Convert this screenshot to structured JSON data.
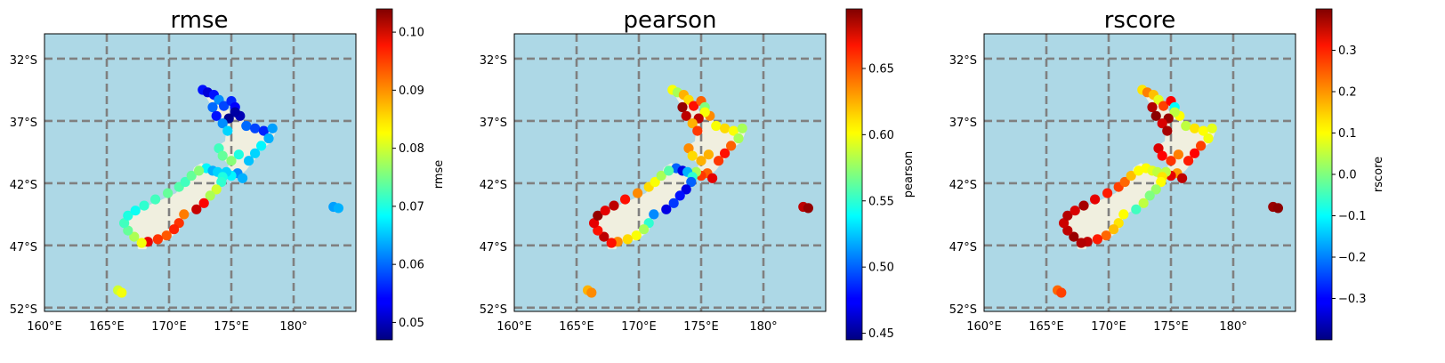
{
  "chart_data": [
    {
      "type": "map-scatter",
      "title": "rmse",
      "colorbar_label": "rmse",
      "cbar_range": [
        0.047,
        0.104
      ],
      "cbar_ticks": [
        0.05,
        0.06,
        0.07,
        0.08,
        0.09,
        0.1
      ],
      "cbar_tick_labels": [
        "0.05",
        "0.06",
        "0.07",
        "0.08",
        "0.09",
        "0.10"
      ]
    },
    {
      "type": "map-scatter",
      "title": "pearson",
      "colorbar_label": "pearson",
      "cbar_range": [
        0.445,
        0.695
      ],
      "cbar_ticks": [
        0.45,
        0.5,
        0.55,
        0.6,
        0.65
      ],
      "cbar_tick_labels": [
        "0.45",
        "0.50",
        "0.55",
        "0.60",
        "0.65"
      ]
    },
    {
      "type": "map-scatter",
      "title": "rscore",
      "colorbar_label": "rscore",
      "cbar_range": [
        -0.4,
        0.4
      ],
      "cbar_ticks": [
        -0.3,
        -0.2,
        -0.1,
        0.0,
        0.1,
        0.2,
        0.3
      ],
      "cbar_tick_labels": [
        "−0.3",
        "−0.2",
        "−0.1",
        "0.0",
        "0.1",
        "0.2",
        "0.3"
      ]
    }
  ],
  "map": {
    "lon_range": [
      160,
      185
    ],
    "lat_range": [
      -52.3,
      -30
    ],
    "lon_ticks": [
      160,
      165,
      170,
      175,
      180
    ],
    "lon_tick_labels": [
      "160°E",
      "165°E",
      "170°E",
      "175°E",
      "180°"
    ],
    "lat_ticks": [
      -32,
      -37,
      -42,
      -47,
      -52
    ],
    "lat_tick_labels": [
      "32°S",
      "37°S",
      "42°S",
      "47°S",
      "52°S"
    ],
    "ocean_color": "#add8e6",
    "land_color": "#f0efdf",
    "grid_color": "#808080",
    "colormap": "jet"
  },
  "stations": [
    {
      "lon": 172.7,
      "lat": -34.5,
      "rmse": 0.055,
      "pearson": 0.6,
      "rscore": 0.12
    },
    {
      "lon": 173.1,
      "lat": -34.7,
      "rmse": 0.052,
      "pearson": 0.58,
      "rscore": 0.2
    },
    {
      "lon": 173.6,
      "lat": -34.9,
      "rmse": 0.055,
      "pearson": 0.62,
      "rscore": 0.15
    },
    {
      "lon": 174.0,
      "lat": -35.3,
      "rmse": 0.062,
      "pearson": 0.61,
      "rscore": 0.08
    },
    {
      "lon": 174.4,
      "lat": -35.8,
      "rmse": 0.058,
      "pearson": 0.66,
      "rscore": 0.25
    },
    {
      "lon": 175.0,
      "lat": -35.4,
      "rmse": 0.056,
      "pearson": 0.64,
      "rscore": 0.3
    },
    {
      "lon": 175.3,
      "lat": -35.9,
      "rmse": 0.054,
      "pearson": 0.57,
      "rscore": -0.1
    },
    {
      "lon": 175.7,
      "lat": -36.6,
      "rmse": 0.05,
      "pearson": 0.63,
      "rscore": 0.1
    },
    {
      "lon": 175.3,
      "lat": -36.3,
      "rmse": 0.049,
      "pearson": 0.6,
      "rscore": 0.05
    },
    {
      "lon": 174.8,
      "lat": -36.8,
      "rmse": 0.048,
      "pearson": 0.68,
      "rscore": 0.38
    },
    {
      "lon": 173.5,
      "lat": -35.9,
      "rmse": 0.06,
      "pearson": 0.69,
      "rscore": 0.36
    },
    {
      "lon": 173.8,
      "lat": -36.6,
      "rmse": 0.055,
      "pearson": 0.68,
      "rscore": 0.39
    },
    {
      "lon": 174.3,
      "lat": -37.2,
      "rmse": 0.062,
      "pearson": 0.62,
      "rscore": 0.33
    },
    {
      "lon": 174.7,
      "lat": -37.8,
      "rmse": 0.066,
      "pearson": 0.65,
      "rscore": 0.37
    },
    {
      "lon": 176.2,
      "lat": -37.4,
      "rmse": 0.06,
      "pearson": 0.6,
      "rscore": 0.05
    },
    {
      "lon": 176.9,
      "lat": -37.6,
      "rmse": 0.058,
      "pearson": 0.61,
      "rscore": 0.12
    },
    {
      "lon": 177.6,
      "lat": -37.8,
      "rmse": 0.056,
      "pearson": 0.6,
      "rscore": 0.1
    },
    {
      "lon": 178.3,
      "lat": -37.6,
      "rmse": 0.063,
      "pearson": 0.58,
      "rscore": 0.08
    },
    {
      "lon": 178.0,
      "lat": -38.4,
      "rmse": 0.064,
      "pearson": 0.58,
      "rscore": 0.09
    },
    {
      "lon": 177.4,
      "lat": -39.0,
      "rmse": 0.068,
      "pearson": 0.64,
      "rscore": 0.25
    },
    {
      "lon": 176.9,
      "lat": -39.6,
      "rmse": 0.066,
      "pearson": 0.66,
      "rscore": 0.3
    },
    {
      "lon": 176.4,
      "lat": -40.2,
      "rmse": 0.065,
      "pearson": 0.65,
      "rscore": 0.28
    },
    {
      "lon": 174.0,
      "lat": -39.2,
      "rmse": 0.072,
      "pearson": 0.63,
      "rscore": 0.33
    },
    {
      "lon": 174.3,
      "lat": -39.8,
      "rmse": 0.074,
      "pearson": 0.61,
      "rscore": 0.3
    },
    {
      "lon": 175.0,
      "lat": -40.2,
      "rmse": 0.076,
      "pearson": 0.62,
      "rscore": 0.26
    },
    {
      "lon": 175.6,
      "lat": -39.7,
      "rmse": 0.07,
      "pearson": 0.62,
      "rscore": 0.2
    },
    {
      "lon": 175.5,
      "lat": -41.2,
      "rmse": 0.062,
      "pearson": 0.64,
      "rscore": 0.18
    },
    {
      "lon": 175.9,
      "lat": -41.6,
      "rmse": 0.064,
      "pearson": 0.67,
      "rscore": 0.35
    },
    {
      "lon": 175.0,
      "lat": -41.4,
      "rmse": 0.068,
      "pearson": 0.65,
      "rscore": 0.32
    },
    {
      "lon": 174.6,
      "lat": -41.1,
      "rmse": 0.066,
      "pearson": 0.58,
      "rscore": 0.05
    },
    {
      "lon": 173.0,
      "lat": -40.8,
      "rmse": 0.068,
      "pearson": 0.5,
      "rscore": 0.1
    },
    {
      "lon": 173.5,
      "lat": -41.0,
      "rmse": 0.064,
      "pearson": 0.47,
      "rscore": 0.08
    },
    {
      "lon": 173.9,
      "lat": -41.1,
      "rmse": 0.066,
      "pearson": 0.52,
      "rscore": 0.05
    },
    {
      "lon": 174.3,
      "lat": -41.5,
      "rmse": 0.07,
      "pearson": 0.55,
      "rscore": 0.12
    },
    {
      "lon": 174.2,
      "lat": -41.9,
      "rmse": 0.071,
      "pearson": 0.5,
      "rscore": 0.1
    },
    {
      "lon": 173.8,
      "lat": -42.5,
      "rmse": 0.08,
      "pearson": 0.47,
      "rscore": 0.02
    },
    {
      "lon": 173.3,
      "lat": -43.0,
      "rmse": 0.078,
      "pearson": 0.48,
      "rscore": 0.0
    },
    {
      "lon": 172.8,
      "lat": -43.6,
      "rmse": 0.097,
      "pearson": 0.49,
      "rscore": 0.05
    },
    {
      "lon": 172.2,
      "lat": -44.1,
      "rmse": 0.1,
      "pearson": 0.47,
      "rscore": -0.05
    },
    {
      "lon": 171.2,
      "lat": -44.5,
      "rmse": 0.09,
      "pearson": 0.51,
      "rscore": 0.1
    },
    {
      "lon": 170.8,
      "lat": -45.2,
      "rmse": 0.094,
      "pearson": 0.55,
      "rscore": 0.12
    },
    {
      "lon": 170.4,
      "lat": -45.7,
      "rmse": 0.095,
      "pearson": 0.58,
      "rscore": 0.15
    },
    {
      "lon": 169.8,
      "lat": -46.2,
      "rmse": 0.092,
      "pearson": 0.6,
      "rscore": 0.22
    },
    {
      "lon": 169.1,
      "lat": -46.5,
      "rmse": 0.094,
      "pearson": 0.61,
      "rscore": 0.28
    },
    {
      "lon": 168.3,
      "lat": -46.7,
      "rmse": 0.098,
      "pearson": 0.63,
      "rscore": 0.35
    },
    {
      "lon": 167.8,
      "lat": -46.8,
      "rmse": 0.082,
      "pearson": 0.66,
      "rscore": 0.36
    },
    {
      "lon": 167.2,
      "lat": -46.3,
      "rmse": 0.078,
      "pearson": 0.68,
      "rscore": 0.38
    },
    {
      "lon": 166.7,
      "lat": -45.8,
      "rmse": 0.074,
      "pearson": 0.66,
      "rscore": 0.35
    },
    {
      "lon": 166.4,
      "lat": -45.2,
      "rmse": 0.072,
      "pearson": 0.67,
      "rscore": 0.34
    },
    {
      "lon": 166.7,
      "lat": -44.6,
      "rmse": 0.07,
      "pearson": 0.69,
      "rscore": 0.36
    },
    {
      "lon": 167.3,
      "lat": -44.2,
      "rmse": 0.069,
      "pearson": 0.67,
      "rscore": 0.33
    },
    {
      "lon": 168.0,
      "lat": -43.8,
      "rmse": 0.071,
      "pearson": 0.68,
      "rscore": 0.37
    },
    {
      "lon": 168.9,
      "lat": -43.3,
      "rmse": 0.072,
      "pearson": 0.66,
      "rscore": 0.32
    },
    {
      "lon": 169.9,
      "lat": -42.8,
      "rmse": 0.074,
      "pearson": 0.63,
      "rscore": 0.28
    },
    {
      "lon": 170.8,
      "lat": -42.3,
      "rmse": 0.073,
      "pearson": 0.61,
      "rscore": 0.25
    },
    {
      "lon": 171.3,
      "lat": -41.9,
      "rmse": 0.072,
      "pearson": 0.6,
      "rscore": 0.22
    },
    {
      "lon": 171.8,
      "lat": -41.4,
      "rmse": 0.074,
      "pearson": 0.58,
      "rscore": 0.15
    },
    {
      "lon": 172.4,
      "lat": -41.0,
      "rmse": 0.076,
      "pearson": 0.56,
      "rscore": 0.1
    },
    {
      "lon": 165.9,
      "lat": -50.6,
      "rmse": 0.08,
      "pearson": 0.62,
      "rscore": 0.22
    },
    {
      "lon": 166.2,
      "lat": -50.8,
      "rmse": 0.082,
      "pearson": 0.63,
      "rscore": 0.25
    },
    {
      "lon": 183.2,
      "lat": -43.9,
      "rmse": 0.063,
      "pearson": 0.68,
      "rscore": 0.38
    },
    {
      "lon": 183.6,
      "lat": -44.0,
      "rmse": 0.064,
      "pearson": 0.69,
      "rscore": 0.39
    }
  ]
}
